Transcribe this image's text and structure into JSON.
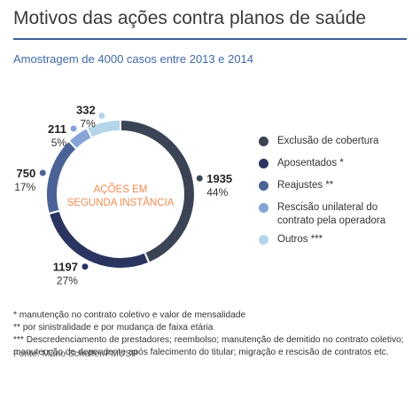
{
  "title": "Motivos das ações contra planos de saúde",
  "subtitle": "Amostragem de 4000 casos entre 2013 e 2014",
  "center_label": [
    "AÇÕES EM",
    "SEGUNDA INSTÂNCIA"
  ],
  "colors": {
    "accent_rule": "#3f5f9c",
    "subtitle": "#3f6aa7",
    "center_label": "#f28c4f"
  },
  "chart_data": {
    "type": "pie",
    "style": "donut",
    "title": "Motivos das ações contra planos de saúde",
    "subtitle": "Amostragem de 4000 casos entre 2013 e 2014",
    "categories": [
      "Exclusão de cobertura",
      "Aposentados *",
      "Reajustes **",
      "Rescisão unilateral do contrato pela operadora",
      "Outros ***"
    ],
    "values": [
      1935,
      1197,
      750,
      211,
      332
    ],
    "percent_labels": [
      "44%",
      "27%",
      "17%",
      "5%",
      "7%"
    ],
    "value_labels": [
      "1935",
      "1197",
      "750",
      "211",
      "332"
    ],
    "colors": [
      "#3b4454",
      "#2a3460",
      "#4a6296",
      "#86a4d6",
      "#b5d5ea"
    ],
    "legend_position": "right"
  },
  "legend": [
    {
      "label": "Exclusão de cobertura",
      "color": "#3b4454"
    },
    {
      "label": "Aposentados *",
      "color": "#2a3460"
    },
    {
      "label": "Reajustes **",
      "color": "#4a6296"
    },
    {
      "label": "Rescisão unilateral do contrato pela operadora",
      "color": "#86a4d6"
    },
    {
      "label": "Outros ***",
      "color": "#b5d5ea"
    }
  ],
  "footnotes": [
    "* manutenção no contrato coletivo e valor de mensalidade",
    "** por sinistralidade e por mudança de faixa etária",
    "*** Descredenciamento de prestadores; reembolso; manutenção de demitido no contrato coletivo; manutenção de dependente após falecimento do titular; migração e rescisão de contratos etc."
  ],
  "source": "Fonte: Mário Scheffer/FMUSP"
}
